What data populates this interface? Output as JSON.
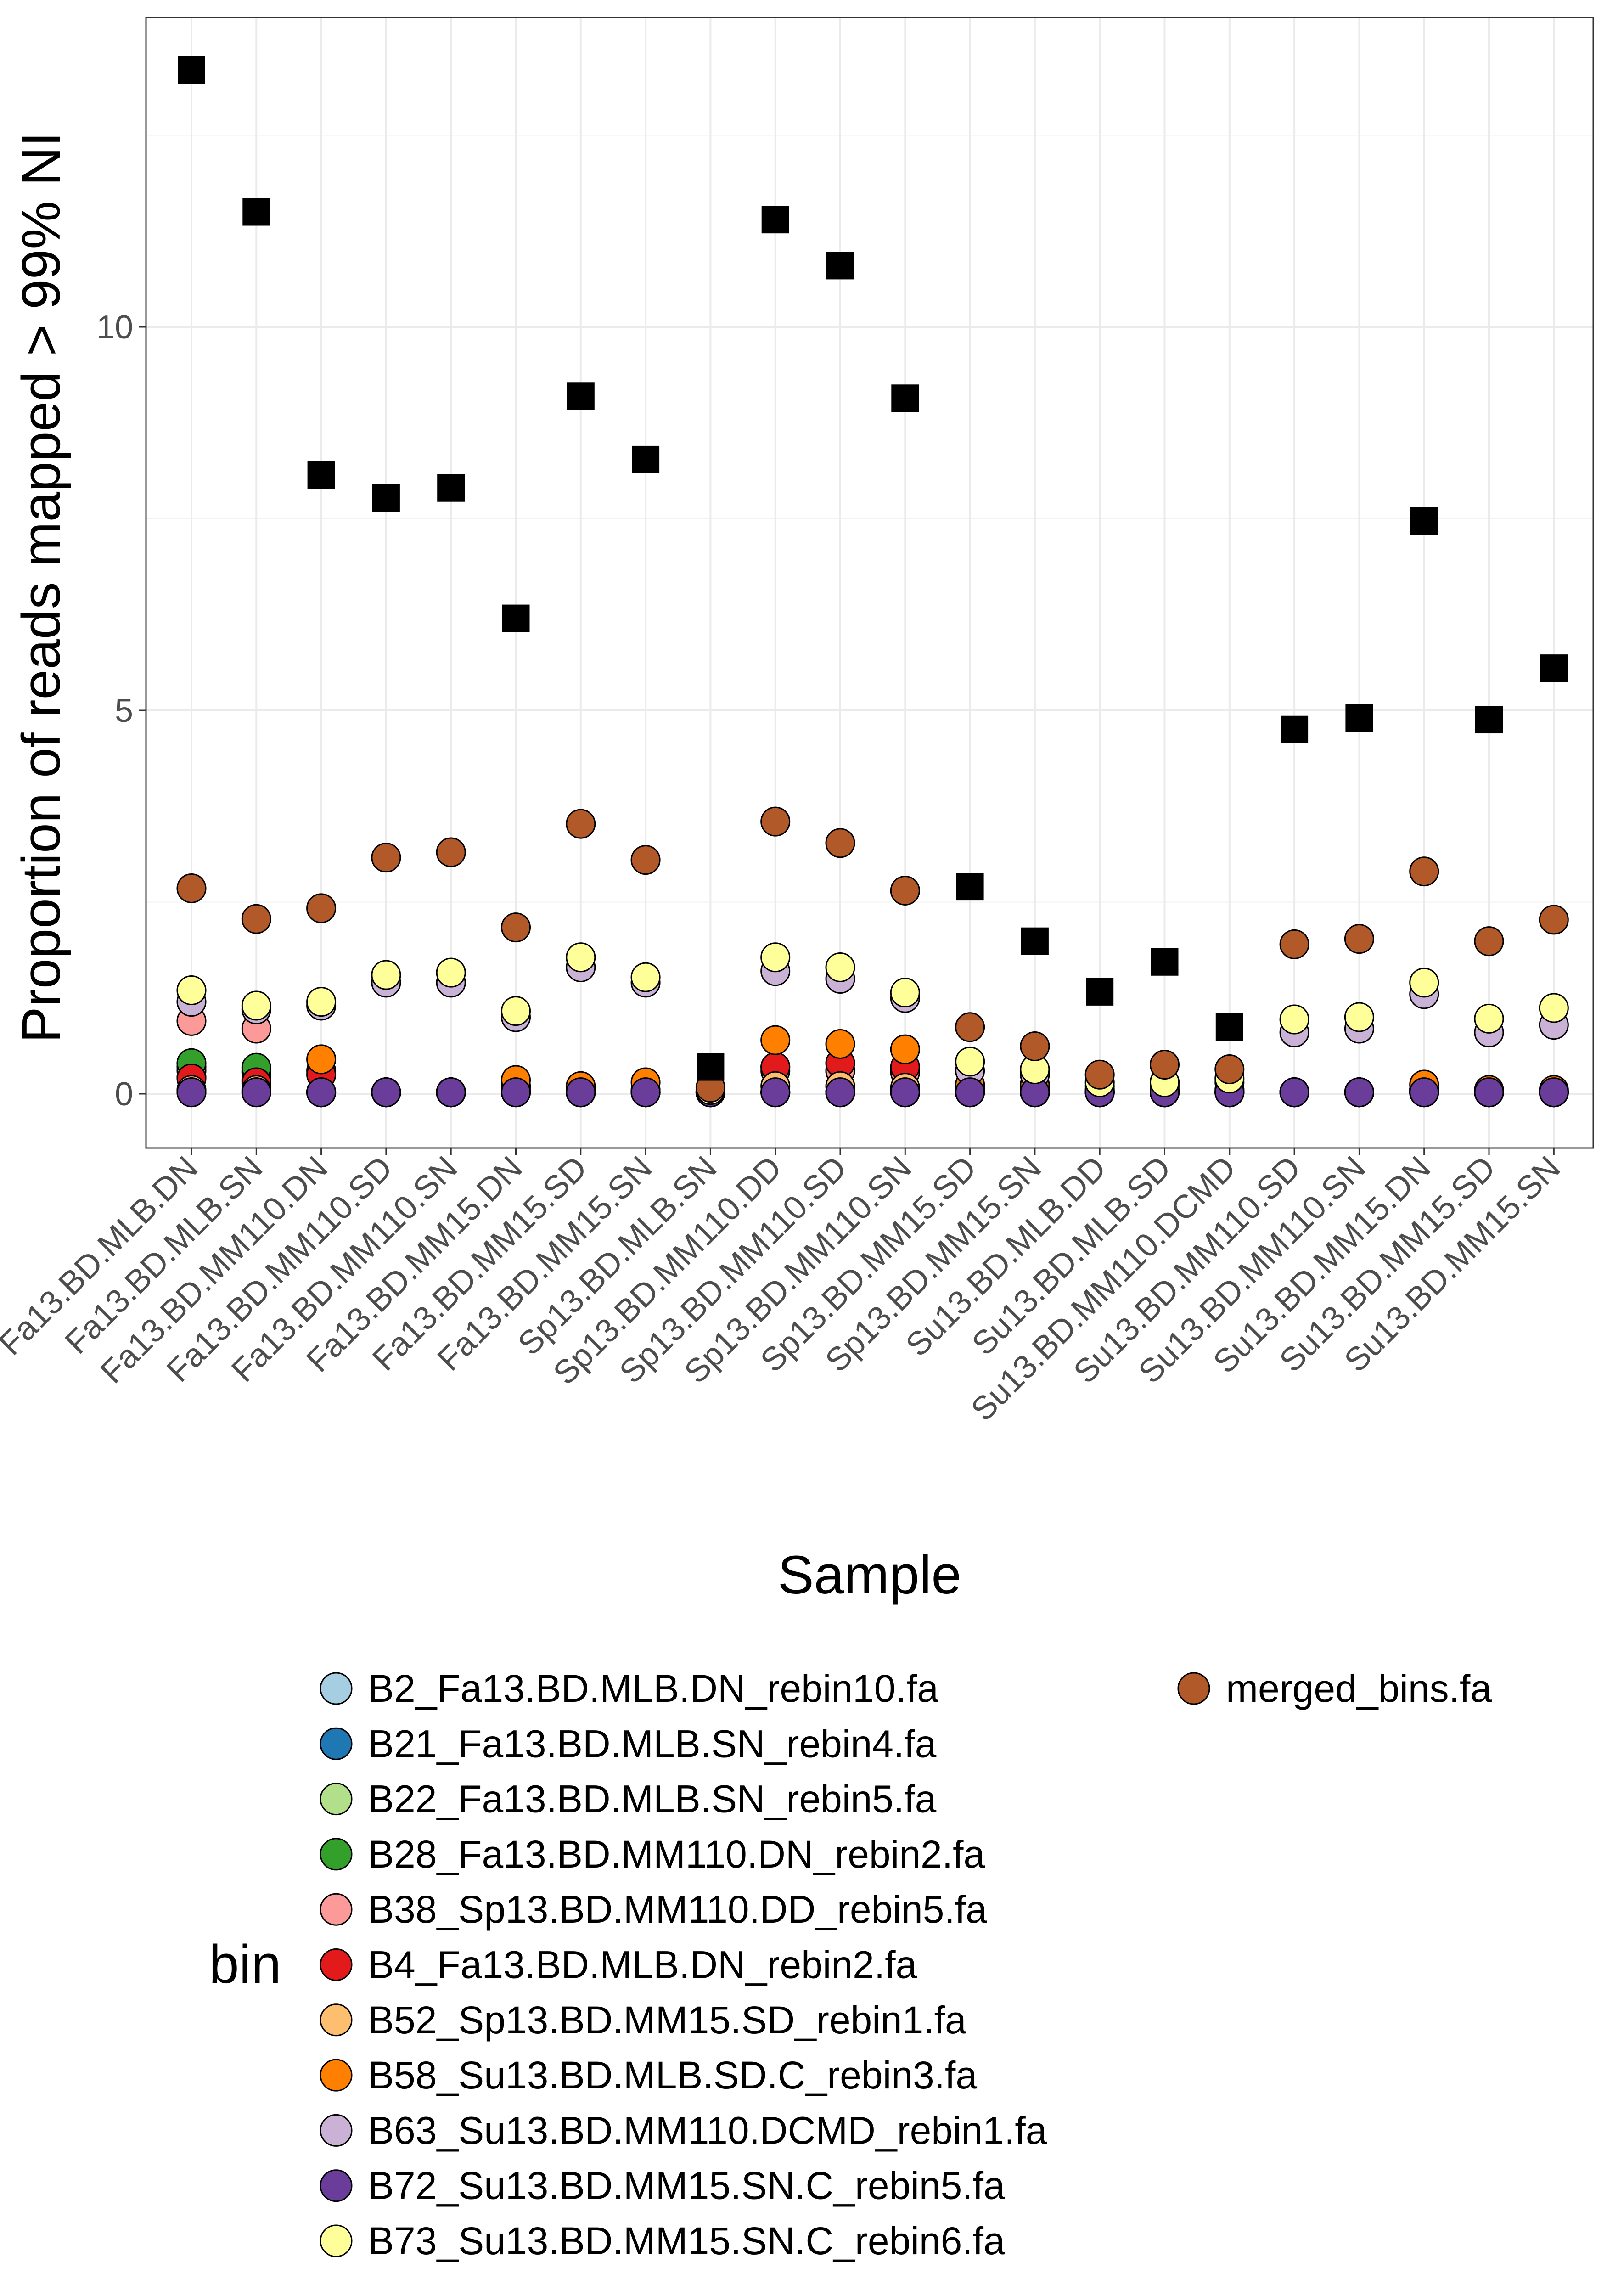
{
  "chart_data": {
    "type": "scatter",
    "title": "",
    "xlabel": "Sample",
    "ylabel": "Proportion of reads mapped > 99% NI",
    "ylim": [
      -0.3,
      14.0
    ],
    "yticks": [
      0,
      5,
      10
    ],
    "grid": true,
    "legend_title": "bin",
    "legend_position": "bottom",
    "categories": [
      "Fa13.BD.MLB.DN",
      "Fa13.BD.MLB.SN",
      "Fa13.BD.MM110.DN",
      "Fa13.BD.MM110.SD",
      "Fa13.BD.MM110.SN",
      "Fa13.BD.MM15.DN",
      "Fa13.BD.MM15.SD",
      "Fa13.BD.MM15.SN",
      "Sp13.BD.MLB.SN",
      "Sp13.BD.MM110.DD",
      "Sp13.BD.MM110.SD",
      "Sp13.BD.MM110.SN",
      "Sp13.BD.MM15.SD",
      "Sp13.BD.MM15.SN",
      "Su13.BD.MLB.DD",
      "Su13.BD.MLB.SD",
      "Su13.BD.MM110.DCMD",
      "Su13.BD.MM110.SD",
      "Su13.BD.MM110.SN",
      "Su13.BD.MM15.DN",
      "Su13.BD.MM15.SD",
      "Su13.BD.MM15.SN"
    ],
    "series": [
      {
        "name": "B2_Fa13.BD.MLB.DN_rebin10.fa",
        "color": "#A6CEE3",
        "values": [
          0.35,
          0.3,
          0.02,
          0.02,
          0.02,
          0.03,
          0.02,
          0.02,
          0.02,
          0.3,
          0.3,
          0.3,
          0.02,
          0.02,
          0.02,
          0.02,
          0.02,
          0.02,
          0.02,
          0.02,
          0.02,
          0.02
        ]
      },
      {
        "name": "B21_Fa13.BD.MLB.SN_rebin4.fa",
        "color": "#1F78B4",
        "values": [
          0.22,
          0.18,
          0.02,
          0.02,
          0.02,
          0.02,
          0.02,
          0.02,
          0.02,
          0.02,
          0.02,
          0.02,
          0.02,
          0.02,
          0.02,
          0.02,
          0.02,
          0.02,
          0.02,
          0.02,
          0.02,
          0.02
        ]
      },
      {
        "name": "B22_Fa13.BD.MLB.SN_rebin5.fa",
        "color": "#B2DF8A",
        "values": [
          0.3,
          0.28,
          0.02,
          0.02,
          0.02,
          0.02,
          0.02,
          0.02,
          0.02,
          0.02,
          0.02,
          0.02,
          0.02,
          0.02,
          0.02,
          0.02,
          0.02,
          0.02,
          0.02,
          0.02,
          0.02,
          0.02
        ]
      },
      {
        "name": "B28_Fa13.BD.MM110.DN_rebin2.fa",
        "color": "#33A02C",
        "values": [
          0.4,
          0.34,
          0.02,
          0.02,
          0.02,
          0.02,
          0.02,
          0.02,
          0.02,
          0.02,
          0.02,
          0.02,
          0.02,
          0.02,
          0.02,
          0.02,
          0.02,
          0.02,
          0.02,
          0.02,
          0.02,
          0.02
        ]
      },
      {
        "name": "B38_Sp13.BD.MM110.DD_rebin5.fa",
        "color": "#FB9A99",
        "values": [
          0.95,
          0.85,
          0.3,
          0.02,
          0.02,
          0.1,
          0.02,
          0.02,
          0.02,
          0.35,
          0.3,
          0.28,
          0.05,
          0.05,
          0.02,
          0.02,
          0.02,
          0.02,
          0.02,
          0.05,
          0.02,
          0.02
        ]
      },
      {
        "name": "B4_Fa13.BD.MLB.DN_rebin2.fa",
        "color": "#E31A1C",
        "values": [
          0.2,
          0.15,
          0.25,
          0.02,
          0.02,
          0.05,
          0.02,
          0.02,
          0.02,
          0.35,
          0.4,
          0.35,
          0.05,
          0.05,
          0.02,
          0.02,
          0.02,
          0.02,
          0.02,
          0.05,
          0.02,
          0.02
        ]
      },
      {
        "name": "B52_Sp13.BD.MM15.SD_rebin1.fa",
        "color": "#FDBF6F",
        "values": [
          0.05,
          0.05,
          0.02,
          0.02,
          0.02,
          0.1,
          0.05,
          0.05,
          0.02,
          0.1,
          0.1,
          0.08,
          0.1,
          0.1,
          0.05,
          0.15,
          0.05,
          0.02,
          0.02,
          0.05,
          0.02,
          0.02
        ]
      },
      {
        "name": "B58_Su13.BD.MLB.SD.C_rebin3.fa",
        "color": "#FF7F00",
        "values": [
          0.02,
          0.02,
          0.45,
          0.02,
          0.02,
          0.18,
          0.1,
          0.15,
          0.02,
          0.7,
          0.65,
          0.58,
          0.12,
          0.12,
          0.05,
          0.05,
          0.05,
          0.02,
          0.02,
          0.12,
          0.05,
          0.05
        ]
      },
      {
        "name": "B63_Su13.BD.MM110.DCMD_rebin1.fa",
        "color": "#CAB2D6",
        "values": [
          1.2,
          1.1,
          1.15,
          1.45,
          1.45,
          1.0,
          1.65,
          1.45,
          0.02,
          1.6,
          1.5,
          1.25,
          0.3,
          0.25,
          0.1,
          0.1,
          0.15,
          0.8,
          0.85,
          1.3,
          0.8,
          0.9
        ]
      },
      {
        "name": "B72_Su13.BD.MM15.SN.C_rebin5.fa",
        "color": "#6A3D9A",
        "values": [
          0.02,
          0.02,
          0.02,
          0.02,
          0.02,
          0.02,
          0.02,
          0.02,
          0.02,
          0.02,
          0.02,
          0.02,
          0.02,
          0.02,
          0.02,
          0.02,
          0.02,
          0.02,
          0.02,
          0.02,
          0.02,
          0.02
        ]
      },
      {
        "name": "B73_Su13.BD.MM15.SN.C_rebin6.fa",
        "color": "#FFFF99",
        "values": [
          1.35,
          1.15,
          1.2,
          1.55,
          1.58,
          1.08,
          1.78,
          1.52,
          0.05,
          1.78,
          1.65,
          1.32,
          0.42,
          0.32,
          0.15,
          0.15,
          0.2,
          0.97,
          1.0,
          1.45,
          0.98,
          1.12
        ]
      },
      {
        "name": "merged_bins.fa",
        "color": "#B15928",
        "values": [
          2.68,
          2.28,
          2.42,
          3.08,
          3.15,
          2.17,
          3.52,
          3.05,
          0.08,
          3.55,
          3.27,
          2.65,
          0.87,
          0.62,
          0.25,
          0.38,
          0.32,
          1.95,
          2.02,
          2.9,
          1.99,
          2.27
        ]
      }
    ],
    "unlabeled_series": {
      "marker": "square",
      "color": "#000000",
      "values": [
        13.35,
        11.5,
        8.07,
        7.77,
        7.9,
        6.2,
        9.1,
        8.27,
        0.35,
        11.4,
        10.8,
        9.07,
        2.7,
        1.99,
        1.33,
        1.72,
        0.87,
        4.75,
        4.9,
        7.47,
        4.88,
        5.55
      ]
    }
  }
}
